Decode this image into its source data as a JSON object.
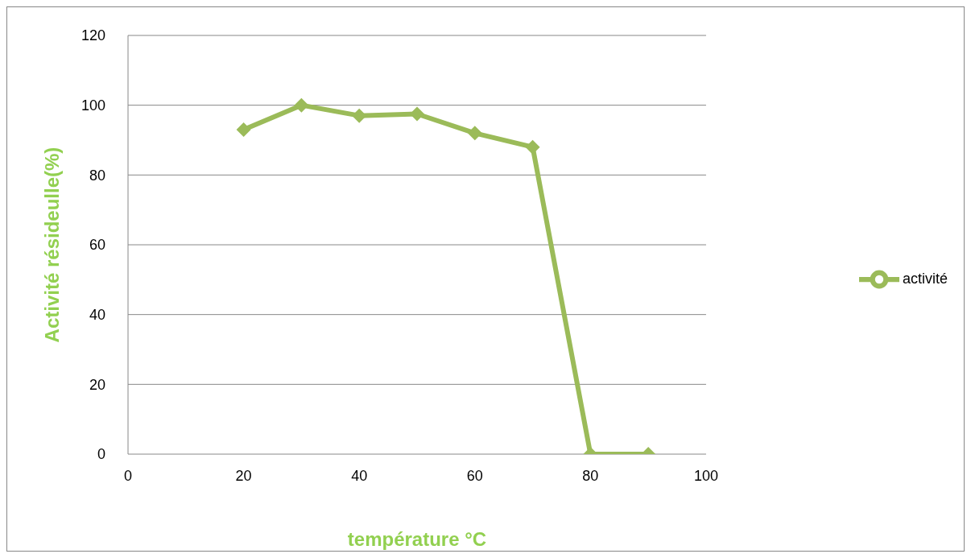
{
  "chart_data": {
    "type": "line",
    "xlabel": "température °C",
    "ylabel": "Activité résideulle(%)",
    "x": [
      20,
      30,
      40,
      50,
      60,
      70,
      80,
      90
    ],
    "series": [
      {
        "name": "activité",
        "color": "#9bbb59",
        "values": [
          93,
          100,
          97,
          97.5,
          92,
          88,
          0,
          0
        ]
      }
    ],
    "xlim": [
      0,
      100
    ],
    "xticks": [
      0,
      20,
      40,
      60,
      80,
      100
    ],
    "ylim": [
      0,
      120
    ],
    "yticks": [
      0,
      20,
      40,
      60,
      80,
      100,
      120
    ],
    "grid": "y",
    "legend": "right",
    "marker": "diamond",
    "line_style": "solid"
  }
}
